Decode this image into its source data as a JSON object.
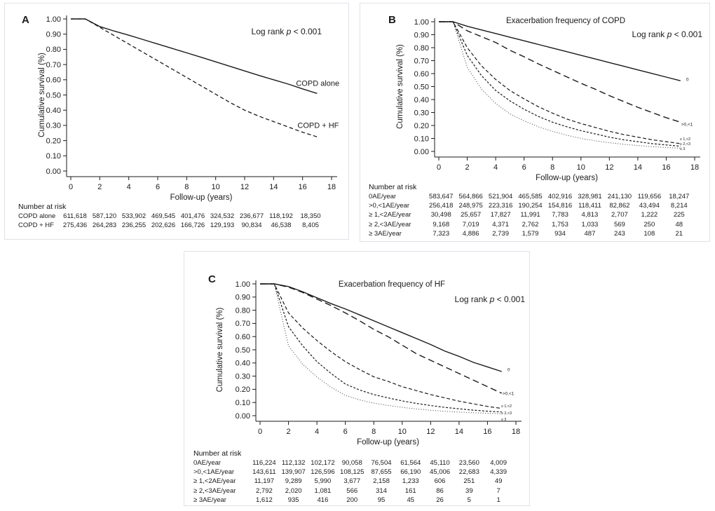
{
  "figure": {
    "background": "#ffffff",
    "panel_border_color": "#dde3ea",
    "line_color": "#1a1a1a",
    "dot_line_color": "#3a3a3a"
  },
  "chart_data": [
    {
      "type": "line",
      "panel_letter": "A",
      "title": "",
      "annotation": {
        "pre": "Log rank ",
        "italic": "p",
        "post": " < 0.001"
      },
      "xlabel": "Follow-up (years)",
      "ylabel": "Cumulative survival (%)",
      "xlim": [
        0,
        18
      ],
      "ylim": [
        0,
        1
      ],
      "xticks": [
        "0",
        "2",
        "4",
        "6",
        "8",
        "10",
        "12",
        "14",
        "16",
        "18"
      ],
      "yticks": [
        "1.00",
        "0.90",
        "0.80",
        "0.70",
        "0.60",
        "0.50",
        "0.40",
        "0.30",
        "0.20",
        "0.10",
        "0.00"
      ],
      "legend_position": "end-of-line labels",
      "grid": false,
      "x": [
        0,
        1,
        2,
        3,
        4,
        5,
        6,
        7,
        8,
        9,
        10,
        11,
        12,
        13,
        14,
        15,
        16,
        17
      ],
      "series": [
        {
          "name": "COPD alone",
          "linestyle": "solid",
          "values": [
            1,
            1,
            0.95,
            0.92,
            0.893,
            0.864,
            0.835,
            0.806,
            0.777,
            0.748,
            0.718,
            0.688,
            0.658,
            0.628,
            0.6,
            0.572,
            0.54,
            0.51
          ],
          "label_x": 15.55,
          "label_y": 0.578,
          "label_size": 11
        },
        {
          "name": "COPD + HF",
          "linestyle": "dash",
          "values": [
            1,
            1,
            0.945,
            0.89,
            0.835,
            0.78,
            0.725,
            0.67,
            0.615,
            0.56,
            0.505,
            0.45,
            0.4,
            0.36,
            0.325,
            0.29,
            0.255,
            0.225
          ],
          "label_x": 15.65,
          "label_y": 0.302,
          "label_size": 11
        }
      ],
      "risk_table": {
        "heading": "Number at risk",
        "timepoints": [
          0,
          2,
          4,
          6,
          8,
          10,
          12,
          14,
          16
        ],
        "rows": [
          {
            "label": "COPD alone",
            "values": [
              "611,618",
              "587,120",
              "533,902",
              "469,545",
              "401,476",
              "324,532",
              "236,677",
              "118,192",
              "18,350"
            ]
          },
          {
            "label": "COPD + HF",
            "values": [
              "275,436",
              "264,283",
              "236,255",
              "202,626",
              "166,726",
              "129,193",
              "90,834",
              "46,538",
              "8,405"
            ]
          }
        ]
      }
    },
    {
      "type": "line",
      "panel_letter": "B",
      "title": "Exacerbation frequency of COPD",
      "annotation": {
        "pre": "Log rank ",
        "italic": "p",
        "post": " < 0.001"
      },
      "xlabel": "Follow-up (years)",
      "ylabel": "Cumulative survival (%)",
      "xlim": [
        0,
        18
      ],
      "ylim": [
        0,
        1
      ],
      "xticks": [
        "0",
        "2",
        "4",
        "6",
        "8",
        "10",
        "12",
        "14",
        "16",
        "18"
      ],
      "yticks": [
        "1.00",
        "0.90",
        "0.80",
        "0.70",
        "0.60",
        "0.50",
        "0.40",
        "0.30",
        "0.20",
        "0.10",
        "0.00"
      ],
      "legend_position": "end-of-line labels",
      "grid": false,
      "x": [
        0,
        1,
        2,
        3,
        4,
        5,
        6,
        7,
        8,
        9,
        10,
        11,
        12,
        13,
        14,
        15,
        16,
        17
      ],
      "series": [
        {
          "name": "0",
          "linestyle": "solid",
          "values": [
            1,
            1,
            0.965,
            0.937,
            0.909,
            0.881,
            0.853,
            0.825,
            0.797,
            0.769,
            0.741,
            0.713,
            0.685,
            0.657,
            0.629,
            0.601,
            0.573,
            0.545
          ],
          "label_x": 17.4,
          "label_y": 0.555,
          "label_size": 6.5
        },
        {
          "name": ">0,<1",
          "linestyle": "longdash",
          "values": [
            1,
            1,
            0.93,
            0.885,
            0.84,
            0.78,
            0.73,
            0.675,
            0.625,
            0.575,
            0.525,
            0.48,
            0.43,
            0.385,
            0.34,
            0.3,
            0.26,
            0.225
          ],
          "label_x": 17.05,
          "label_y": 0.21,
          "label_size": 6.5
        },
        {
          "name": "≥ 1,<2",
          "linestyle": "meddash",
          "values": [
            1,
            1,
            0.8,
            0.66,
            0.555,
            0.47,
            0.405,
            0.345,
            0.295,
            0.25,
            0.215,
            0.185,
            0.155,
            0.13,
            0.11,
            0.09,
            0.075,
            0.06
          ],
          "label_x": 16.95,
          "label_y": 0.098,
          "label_size": 5.5
        },
        {
          "name": "≥ 2,<3",
          "linestyle": "shortdash",
          "values": [
            1,
            1,
            0.74,
            0.585,
            0.47,
            0.39,
            0.325,
            0.27,
            0.225,
            0.19,
            0.16,
            0.135,
            0.11,
            0.09,
            0.075,
            0.06,
            0.05,
            0.04
          ],
          "label_x": 16.95,
          "label_y": 0.06,
          "label_size": 5.5
        },
        {
          "name": "≥ 3",
          "linestyle": "dot",
          "values": [
            1,
            1,
            0.65,
            0.48,
            0.37,
            0.29,
            0.235,
            0.19,
            0.155,
            0.125,
            0.1,
            0.082,
            0.067,
            0.055,
            0.045,
            0.037,
            0.03,
            0.025
          ],
          "label_x": 16.95,
          "label_y": 0.022,
          "label_size": 5.5
        }
      ],
      "risk_table": {
        "heading": "Number at risk",
        "timepoints": [
          0,
          2,
          4,
          6,
          8,
          10,
          12,
          14,
          16
        ],
        "rows": [
          {
            "label": "0AE/year",
            "values": [
              "583,647",
              "564,866",
              "521,904",
              "465,585",
              "402,916",
              "328,981",
              "241,130",
              "119,656",
              "18,247"
            ]
          },
          {
            "label": ">0,<1AE/year",
            "values": [
              "256,418",
              "248,975",
              "223,316",
              "190,254",
              "154,816",
              "118,411",
              "82,862",
              "43,494",
              "8,214"
            ]
          },
          {
            "label": "≥ 1,<2AE/year",
            "values": [
              "30,498",
              "25,657",
              "17,827",
              "11,991",
              "7,783",
              "4,813",
              "2,707",
              "1,222",
              "225"
            ]
          },
          {
            "label": "≥ 2,<3AE/year",
            "values": [
              "9,168",
              "7,019",
              "4,371",
              "2,762",
              "1,753",
              "1,033",
              "569",
              "250",
              "48"
            ]
          },
          {
            "label": "≥ 3AE/year",
            "values": [
              "7,323",
              "4,886",
              "2,739",
              "1,579",
              "934",
              "487",
              "243",
              "108",
              "21"
            ]
          }
        ]
      }
    },
    {
      "type": "line",
      "panel_letter": "C",
      "title": "Exacerbation frequency of HF",
      "annotation": {
        "pre": "Log rank ",
        "italic": "p",
        "post": " < 0.001"
      },
      "xlabel": "Follow-up (years)",
      "ylabel": "Cumulative survival (%)",
      "xlim": [
        0,
        18
      ],
      "ylim": [
        0,
        1
      ],
      "xticks": [
        "0",
        "2",
        "4",
        "6",
        "8",
        "10",
        "12",
        "14",
        "16",
        "18"
      ],
      "yticks": [
        "1.00",
        "0.90",
        "0.80",
        "0.70",
        "0.60",
        "0.50",
        "0.40",
        "0.30",
        "0.20",
        "0.10",
        "0.00"
      ],
      "legend_position": "end-of-line labels",
      "grid": false,
      "x": [
        0,
        1,
        2,
        3,
        4,
        5,
        6,
        7,
        8,
        9,
        10,
        11,
        12,
        13,
        14,
        15,
        16,
        17
      ],
      "series": [
        {
          "name": "0",
          "linestyle": "solid",
          "values": [
            1,
            1,
            0.98,
            0.94,
            0.895,
            0.85,
            0.81,
            0.765,
            0.72,
            0.675,
            0.63,
            0.585,
            0.54,
            0.49,
            0.45,
            0.405,
            0.37,
            0.335
          ],
          "label_x": 17.4,
          "label_y": 0.35,
          "label_size": 6.5
        },
        {
          "name": ">0,<1",
          "linestyle": "longdash",
          "values": [
            1,
            1,
            0.975,
            0.935,
            0.885,
            0.835,
            0.78,
            0.72,
            0.655,
            0.6,
            0.535,
            0.47,
            0.42,
            0.37,
            0.32,
            0.27,
            0.22,
            0.17
          ],
          "label_x": 17.05,
          "label_y": 0.17,
          "label_size": 6.5
        },
        {
          "name": "≥ 1,<2",
          "linestyle": "meddash",
          "values": [
            1,
            1,
            0.78,
            0.665,
            0.57,
            0.485,
            0.41,
            0.35,
            0.295,
            0.26,
            0.22,
            0.19,
            0.16,
            0.135,
            0.11,
            0.09,
            0.07,
            0.055
          ],
          "label_x": 16.95,
          "label_y": 0.075,
          "label_size": 5.5
        },
        {
          "name": "≥ 2,<3",
          "linestyle": "shortdash",
          "values": [
            1,
            1,
            0.675,
            0.53,
            0.41,
            0.32,
            0.24,
            0.195,
            0.16,
            0.135,
            0.112,
            0.093,
            0.077,
            0.063,
            0.052,
            0.042,
            0.034,
            0.028
          ],
          "label_x": 16.95,
          "label_y": 0.022,
          "label_size": 5.5
        },
        {
          "name": "≥ 3",
          "linestyle": "dot",
          "values": [
            1,
            1,
            0.53,
            0.39,
            0.294,
            0.215,
            0.154,
            0.12,
            0.095,
            0.078,
            0.063,
            0.051,
            0.041,
            0.033,
            0.027,
            0.022,
            0.018,
            0.015
          ],
          "label_x": 16.95,
          "label_y": -0.028,
          "label_size": 5.5
        }
      ],
      "risk_table": {
        "heading": "Number at risk",
        "timepoints": [
          0,
          2,
          4,
          6,
          8,
          10,
          12,
          14,
          16
        ],
        "rows": [
          {
            "label": "0AE/year",
            "values": [
              "116,224",
              "112,132",
              "102,172",
              "90,058",
              "76,504",
              "61,564",
              "45,110",
              "23,560",
              "4,009"
            ]
          },
          {
            "label": ">0,<1AE/year",
            "values": [
              "143,611",
              "139,907",
              "126,596",
              "108,125",
              "87,655",
              "66,190",
              "45,006",
              "22,683",
              "4,339"
            ]
          },
          {
            "label": "≥ 1,<2AE/year",
            "values": [
              "11,197",
              "9,289",
              "5,990",
              "3,677",
              "2,158",
              "1,233",
              "606",
              "251",
              "49"
            ]
          },
          {
            "label": "≥ 2,<3AE/year",
            "values": [
              "2,792",
              "2,020",
              "1,081",
              "566",
              "314",
              "161",
              "86",
              "39",
              "7"
            ]
          },
          {
            "label": "≥ 3AE/year",
            "values": [
              "1,612",
              "935",
              "416",
              "200",
              "95",
              "45",
              "26",
              "5",
              "1"
            ]
          }
        ]
      }
    }
  ]
}
